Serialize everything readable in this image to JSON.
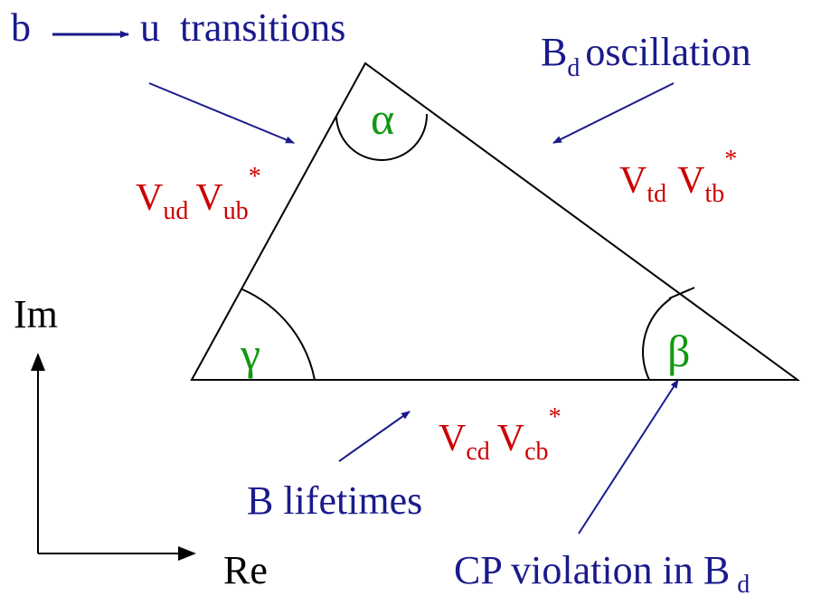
{
  "process_labels": {
    "b_to_u": {
      "from": "b",
      "to": "u  transitions"
    },
    "bd_oscillation": {
      "meson": "B",
      "subscript": "d",
      "text": "oscillation"
    },
    "b_lifetimes": "B lifetimes",
    "cp_violation": {
      "text": "CP violation in B",
      "subscript": "d"
    }
  },
  "angles": {
    "alpha": "α",
    "beta": "β",
    "gamma": "γ"
  },
  "sides": {
    "left": {
      "v1": "V",
      "s1": "ud",
      "v2": "V",
      "s2": "ub",
      "conj": "*"
    },
    "right": {
      "v1": "V",
      "s1": "td",
      "v2": "V",
      "s2": "tb",
      "conj": "*"
    },
    "bottom": {
      "v1": "V",
      "s1": "cd",
      "v2": "V",
      "s2": "cb",
      "conj": "*"
    }
  },
  "axes": {
    "imaginary": "Im",
    "real": "Re"
  }
}
